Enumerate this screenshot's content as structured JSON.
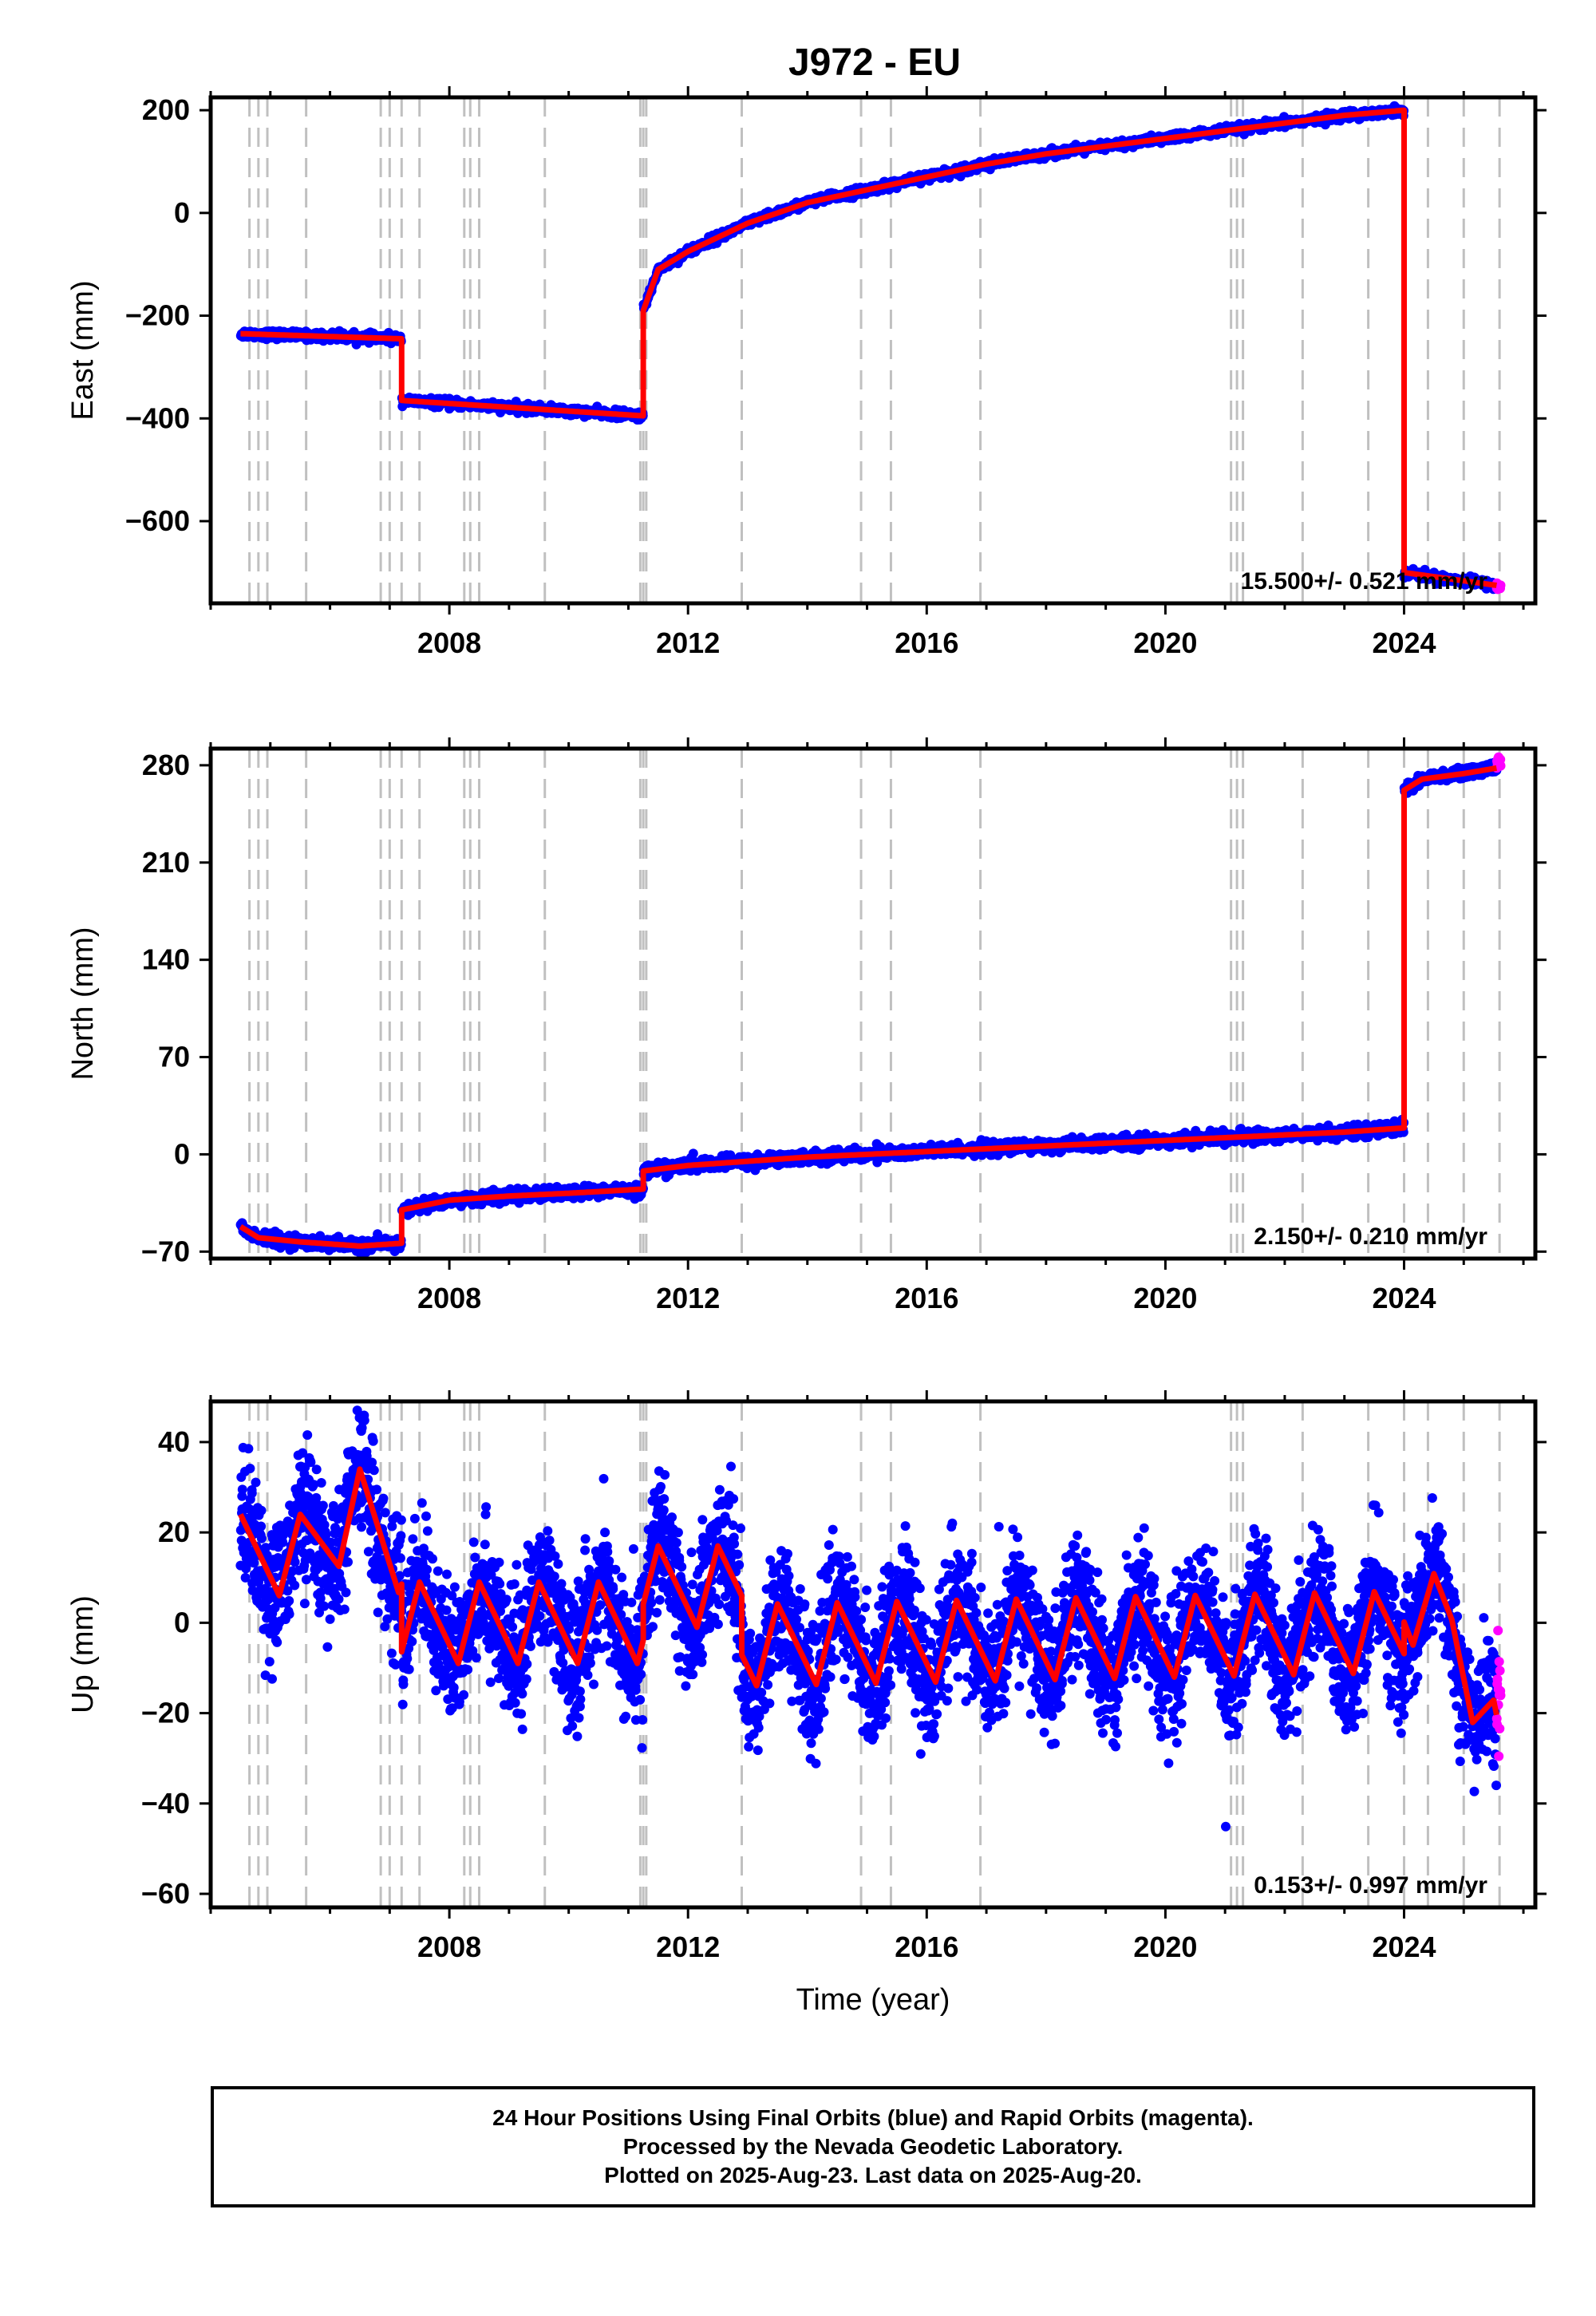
{
  "title": "J972 - EU",
  "chart_data": [
    {
      "type": "scatter",
      "panel": "east",
      "ylabel": "East (mm)",
      "xlabel": "",
      "xlim": [
        2004.0,
        2026.2
      ],
      "ylim": [
        -760,
        225
      ],
      "yticks": [
        200,
        0,
        -200,
        -400,
        -600
      ],
      "xticks": [
        2008,
        2012,
        2016,
        2020,
        2024
      ],
      "rate_label": "15.500+/- 0.521 mm/yr",
      "series": [
        {
          "name": "Final Orbits",
          "color": "#0000ff",
          "segments": [
            {
              "x": [
                2004.5,
                2007.2
              ],
              "y": [
                -235,
                -245
              ]
            },
            {
              "x": [
                2007.2,
                2011.25
              ],
              "y": [
                -365,
                -395
              ]
            },
            {
              "x": [
                2011.25,
                2011.5,
                2012.0,
                2013.0,
                2014.0,
                2015.0,
                2016.0,
                2017.0,
                2018.0,
                2019.0,
                2020.0,
                2021.0,
                2022.0,
                2023.0,
                2024.0
              ],
              "y": [
                -190,
                -110,
                -75,
                -20,
                20,
                45,
                70,
                95,
                115,
                130,
                145,
                160,
                175,
                190,
                200
              ]
            },
            {
              "x": [
                2024.0,
                2025.55
              ],
              "y": [
                -700,
                -725
              ]
            }
          ]
        },
        {
          "name": "Rapid Orbits",
          "color": "#ff00ff",
          "segments": [
            {
              "x": [
                2025.55,
                2025.62
              ],
              "y": [
                -728,
                -728
              ]
            }
          ]
        },
        {
          "name": "Model",
          "color": "#ff0000",
          "steps": [
            [
              2007.2,
              -245,
              -365
            ],
            [
              2011.25,
              -390,
              -190
            ],
            [
              2024.0,
              200,
              -700
            ]
          ]
        }
      ]
    },
    {
      "type": "scatter",
      "panel": "north",
      "ylabel": "North (mm)",
      "xlabel": "",
      "xlim": [
        2004.0,
        2026.2
      ],
      "ylim": [
        -75,
        292
      ],
      "yticks": [
        280,
        210,
        140,
        70,
        0,
        -70
      ],
      "xticks": [
        2008,
        2012,
        2016,
        2020,
        2024
      ],
      "rate_label": "2.150+/- 0.210 mm/yr",
      "series": [
        {
          "name": "Final Orbits",
          "color": "#0000ff",
          "segments": [
            {
              "x": [
                2004.5,
                2004.8,
                2005.5,
                2006.5,
                2007.2
              ],
              "y": [
                -52,
                -60,
                -63,
                -66,
                -64
              ]
            },
            {
              "x": [
                2007.2,
                2008.0,
                2009.0,
                2010.0,
                2011.25
              ],
              "y": [
                -40,
                -33,
                -30,
                -28,
                -25
              ]
            },
            {
              "x": [
                2011.25,
                2012.0,
                2013.0,
                2014.0,
                2015.0,
                2016.0,
                2017.0,
                2018.0,
                2019.0,
                2020.0,
                2021.0,
                2022.0,
                2023.0,
                2024.0
              ],
              "y": [
                -12,
                -8,
                -5,
                -2,
                0,
                2,
                4,
                6,
                8,
                10,
                12,
                14,
                16,
                19
              ]
            },
            {
              "x": [
                2024.0,
                2024.3,
                2025.0,
                2025.55
              ],
              "y": [
                262,
                270,
                274,
                278
              ]
            }
          ]
        },
        {
          "name": "Rapid Orbits",
          "color": "#ff00ff",
          "segments": [
            {
              "x": [
                2025.55,
                2025.62
              ],
              "y": [
                282,
                283
              ]
            }
          ]
        },
        {
          "name": "Model",
          "color": "#ff0000",
          "steps": [
            [
              2007.2,
              -64,
              -40
            ],
            [
              2011.25,
              -25,
              -12
            ],
            [
              2024.0,
              19,
              262
            ]
          ]
        }
      ]
    },
    {
      "type": "scatter",
      "panel": "up",
      "ylabel": "Up (mm)",
      "xlabel": "Time (year)",
      "xlim": [
        2004.0,
        2026.2
      ],
      "ylim": [
        -63,
        49
      ],
      "yticks": [
        40,
        20,
        0,
        -20,
        -40,
        -60
      ],
      "xticks": [
        2008,
        2012,
        2016,
        2020,
        2024
      ],
      "rate_label": "0.153+/- 0.997 mm/yr",
      "series": [
        {
          "name": "Final Orbits",
          "color": "#0000ff",
          "segments": [
            {
              "x": [
                2004.5,
                2005.5,
                2006.5,
                2007.2
              ],
              "y": [
                15,
                15,
                25,
                15
              ]
            },
            {
              "x": [
                2007.2,
                2011.25
              ],
              "y": [
                0,
                0
              ]
            },
            {
              "x": [
                2011.25,
                2012.9
              ],
              "y": [
                8,
                8
              ]
            },
            {
              "x": [
                2012.9,
                2024.0
              ],
              "y": [
                -5,
                -2
              ]
            },
            {
              "x": [
                2024.0,
                2024.8,
                2025.55
              ],
              "y": [
                5,
                0,
                -28
              ]
            }
          ]
        },
        {
          "name": "Rapid Orbits",
          "color": "#ff00ff",
          "segments": [
            {
              "x": [
                2025.55,
                2025.62
              ],
              "y": [
                -25,
                -25
              ]
            }
          ]
        },
        {
          "name": "Model",
          "color": "#ff0000",
          "annual_amplitude": 9
        }
      ]
    }
  ],
  "event_lines": [
    2004.65,
    2004.8,
    2004.95,
    2005.6,
    2006.85,
    2007.0,
    2007.2,
    2007.5,
    2008.25,
    2008.35,
    2008.5,
    2009.6,
    2011.2,
    2011.25,
    2011.3,
    2012.9,
    2014.9,
    2015.4,
    2016.9,
    2021.1,
    2021.2,
    2021.3,
    2022.3,
    2023.4,
    2024.0,
    2024.4,
    2025.0,
    2025.6
  ],
  "footer": {
    "line1": "24 Hour Positions Using Final Orbits (blue) and Rapid Orbits (magenta).",
    "line2": "Processed by the Nevada Geodetic Laboratory.",
    "line3": "Plotted on 2025-Aug-23. Last data on 2025-Aug-20."
  }
}
